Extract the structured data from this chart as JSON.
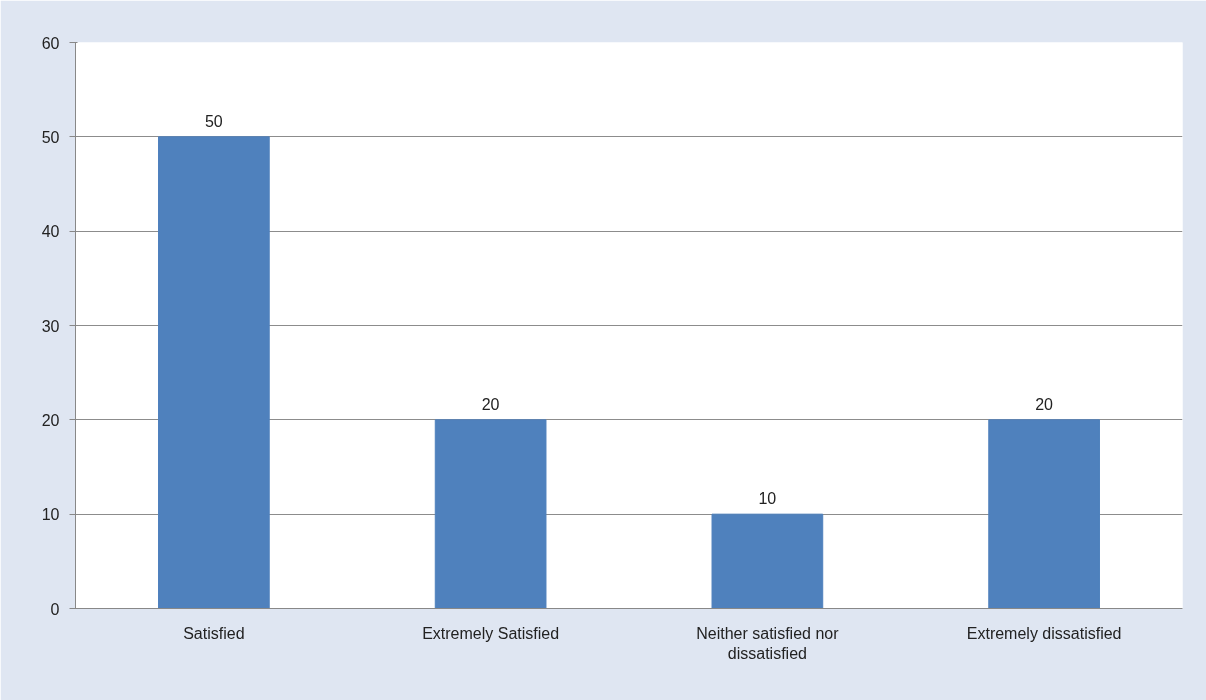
{
  "chart_data": {
    "type": "bar",
    "categories": [
      "Satisfied",
      "Extremely Satisfied",
      "Neither satisfied nor dissatisfied",
      "Extremely dissatisfied"
    ],
    "values": [
      50,
      20,
      10,
      20
    ],
    "color": "#4f81bd",
    "ylim": [
      0,
      60
    ],
    "yticks": [
      0,
      10,
      20,
      30,
      40,
      50,
      60
    ],
    "grid": "y",
    "data_labels": true
  }
}
